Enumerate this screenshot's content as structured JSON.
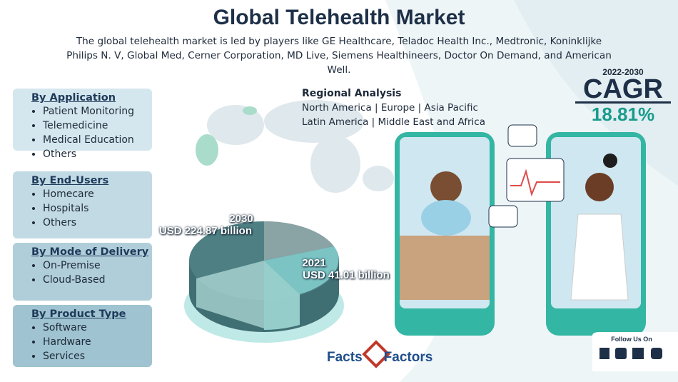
{
  "title": "Global Telehealth Market",
  "description": "The global telehealth market is led by players like GE Healthcare, Teladoc Health Inc., Medtronic, Koninklijke Philips N. V, Global Med, Cerner Corporation, MD Live, Siemens Healthineers, Doctor On Demand, and American Well.",
  "segments": [
    {
      "heading": "By Application",
      "items": [
        "Patient Monitoring",
        "Telemedicine",
        "Medical Education",
        "Others"
      ]
    },
    {
      "heading": "By End-Users",
      "items": [
        "Homecare",
        "Hospitals",
        "Others"
      ]
    },
    {
      "heading": "By Mode of Delivery",
      "items": [
        "On-Premise",
        "Cloud-Based"
      ]
    },
    {
      "heading": "By Product Type",
      "items": [
        "Software",
        "Hardware",
        "Services"
      ]
    }
  ],
  "regional": {
    "heading": "Regional Analysis",
    "lines": [
      "North America | Europe | Asia Pacific",
      "Latin America | Middle East and Africa"
    ]
  },
  "cagr": {
    "period": "2022-2030",
    "label": "CAGR",
    "value": "18.81%"
  },
  "market_size": [
    {
      "year": "2030",
      "value": "USD 224.87 billion"
    },
    {
      "year": "2021",
      "value": "USD 41.01 billion"
    }
  ],
  "brand": {
    "left": "Facts",
    "right": "Factors"
  },
  "social": {
    "label": "Follow Us On"
  }
}
